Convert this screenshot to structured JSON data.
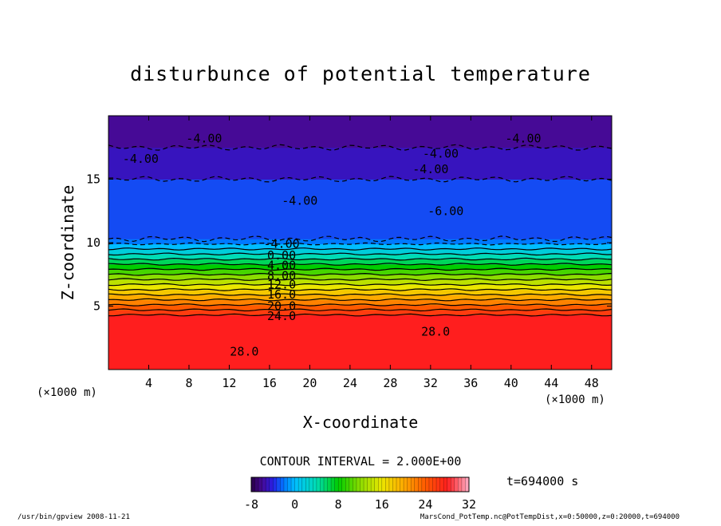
{
  "chart_data": {
    "type": "heatmap",
    "title": "disturbunce of potential temperature",
    "xlabel": "X-coordinate",
    "ylabel": "Z-coordinate",
    "x_unit_left": "(×1000 m)",
    "x_unit_right": "(×1000 m)",
    "xlim": [
      0,
      50
    ],
    "ylim": [
      0,
      20
    ],
    "x_ticks": [
      4,
      8,
      12,
      16,
      20,
      24,
      28,
      32,
      36,
      40,
      44,
      48
    ],
    "y_ticks": [
      5,
      10,
      15
    ],
    "bands": [
      {
        "z0": 0.0,
        "z1": 4.3,
        "value": 28
      },
      {
        "z0": 4.3,
        "z1": 4.7,
        "value": 26
      },
      {
        "z0": 4.7,
        "z1": 5.1,
        "value": 24
      },
      {
        "z0": 5.1,
        "z1": 5.5,
        "value": 22
      },
      {
        "z0": 5.5,
        "z1": 5.9,
        "value": 20
      },
      {
        "z0": 5.9,
        "z1": 6.3,
        "value": 18
      },
      {
        "z0": 6.3,
        "z1": 6.7,
        "value": 16
      },
      {
        "z0": 6.7,
        "z1": 7.1,
        "value": 14
      },
      {
        "z0": 7.1,
        "z1": 7.5,
        "value": 12
      },
      {
        "z0": 7.5,
        "z1": 7.9,
        "value": 10
      },
      {
        "z0": 7.9,
        "z1": 8.3,
        "value": 8
      },
      {
        "z0": 8.3,
        "z1": 8.7,
        "value": 6
      },
      {
        "z0": 8.7,
        "z1": 9.1,
        "value": 4
      },
      {
        "z0": 9.1,
        "z1": 9.5,
        "value": 2
      },
      {
        "z0": 9.5,
        "z1": 9.9,
        "value": 0
      },
      {
        "z0": 9.9,
        "z1": 10.3,
        "value": -2
      },
      {
        "z0": 10.3,
        "z1": 15.0,
        "value": -3
      },
      {
        "z0": 15.0,
        "z1": 17.5,
        "value": -5
      },
      {
        "z0": 17.5,
        "z1": 20.0,
        "value": -6
      }
    ],
    "contour_labels": [
      {
        "text": "-4.00",
        "x": 9.5,
        "z": 18.2
      },
      {
        "text": "-4.00",
        "x": 3.2,
        "z": 16.6
      },
      {
        "text": "-4.00",
        "x": 33.0,
        "z": 17.0
      },
      {
        "text": "-4.00",
        "x": 32.0,
        "z": 15.8
      },
      {
        "text": "-4.00",
        "x": 41.2,
        "z": 18.2
      },
      {
        "text": "-4.00",
        "x": 19.0,
        "z": 13.3
      },
      {
        "text": "-6.00",
        "x": 33.5,
        "z": 12.5
      },
      {
        "text": "-4.00",
        "x": 17.2,
        "z": 9.9
      },
      {
        "text": "0.00",
        "x": 17.2,
        "z": 9.0
      },
      {
        "text": "4.00",
        "x": 17.2,
        "z": 8.2
      },
      {
        "text": "8.00",
        "x": 17.2,
        "z": 7.4
      },
      {
        "text": "12.0",
        "x": 17.2,
        "z": 6.7
      },
      {
        "text": "16.0",
        "x": 17.2,
        "z": 5.9
      },
      {
        "text": "20.0",
        "x": 17.2,
        "z": 5.0
      },
      {
        "text": "24.0",
        "x": 17.2,
        "z": 4.2
      },
      {
        "text": "28.0",
        "x": 13.5,
        "z": 1.4
      },
      {
        "text": "28.0",
        "x": 32.5,
        "z": 3.0
      }
    ],
    "colorbar": {
      "vmin": -8,
      "vmax": 32,
      "tick_labels": [
        "-8",
        "0",
        "8",
        "16",
        "24",
        "32"
      ]
    },
    "contour_interval": "CONTOUR INTERVAL = 2.000E+00",
    "time_label": "t=694000 s"
  },
  "footer": {
    "left": "/usr/bin/gpview   2008-11-21",
    "right": "MarsCond_PotTemp.nc@PotTempDist,x=0:50000,z=0:20000,t=694000"
  }
}
